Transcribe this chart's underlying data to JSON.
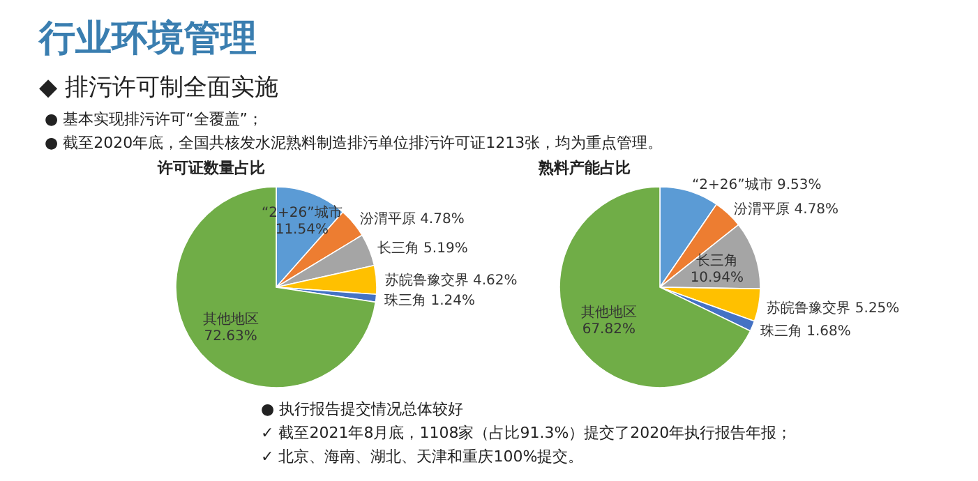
{
  "chart_data": [
    {
      "type": "other",
      "title": "行业环境管理",
      "annotations": [
        "◆ 排污许可制全面实施",
        "● 基本实现排污许可“全覆盖”；",
        "● 截至2020年底，全国共核发水泥熟料制造排污单位排污许可证1213张，均为重点管理。"
      ]
    },
    {
      "type": "pie",
      "title": "许可证数量占比",
      "categories": [
        "“2+26”城市",
        "汾渭平原",
        "长三角",
        "苏皖鲁豫交界",
        "珠三角",
        "其他地区"
      ],
      "values": [
        11.54,
        4.78,
        5.19,
        4.62,
        1.24,
        72.63
      ],
      "value_labels": [
        "11.54%",
        "4.78%",
        "5.19%",
        "4.62%",
        "1.24%",
        "72.63%"
      ],
      "colors": [
        "#5b9bd5",
        "#ed7d31",
        "#a5a5a5",
        "#ffc000",
        "#4472c4",
        "#70ad47"
      ]
    },
    {
      "type": "pie",
      "title": "熟料产能占比",
      "categories": [
        "“2+26”城市",
        "汾渭平原",
        "长三角",
        "苏皖鲁豫交界",
        "珠三角",
        "其他地区"
      ],
      "values": [
        9.53,
        4.78,
        10.94,
        5.25,
        1.68,
        67.82
      ],
      "value_labels": [
        "9.53%",
        "4.78%",
        "10.94%",
        "5.25%",
        "1.68%",
        "67.82%"
      ],
      "colors": [
        "#5b9bd5",
        "#ed7d31",
        "#a5a5a5",
        "#ffc000",
        "#4472c4",
        "#70ad47"
      ]
    },
    {
      "type": "other",
      "annotations": [
        "● 执行报告提交情况总体较好",
        "✓ 截至2021年8月底，1108家（占比91.3%）提交了2020年执行报告年报；",
        "✓ 北京、海南、湖北、天津和重庆100%提交。"
      ]
    }
  ]
}
